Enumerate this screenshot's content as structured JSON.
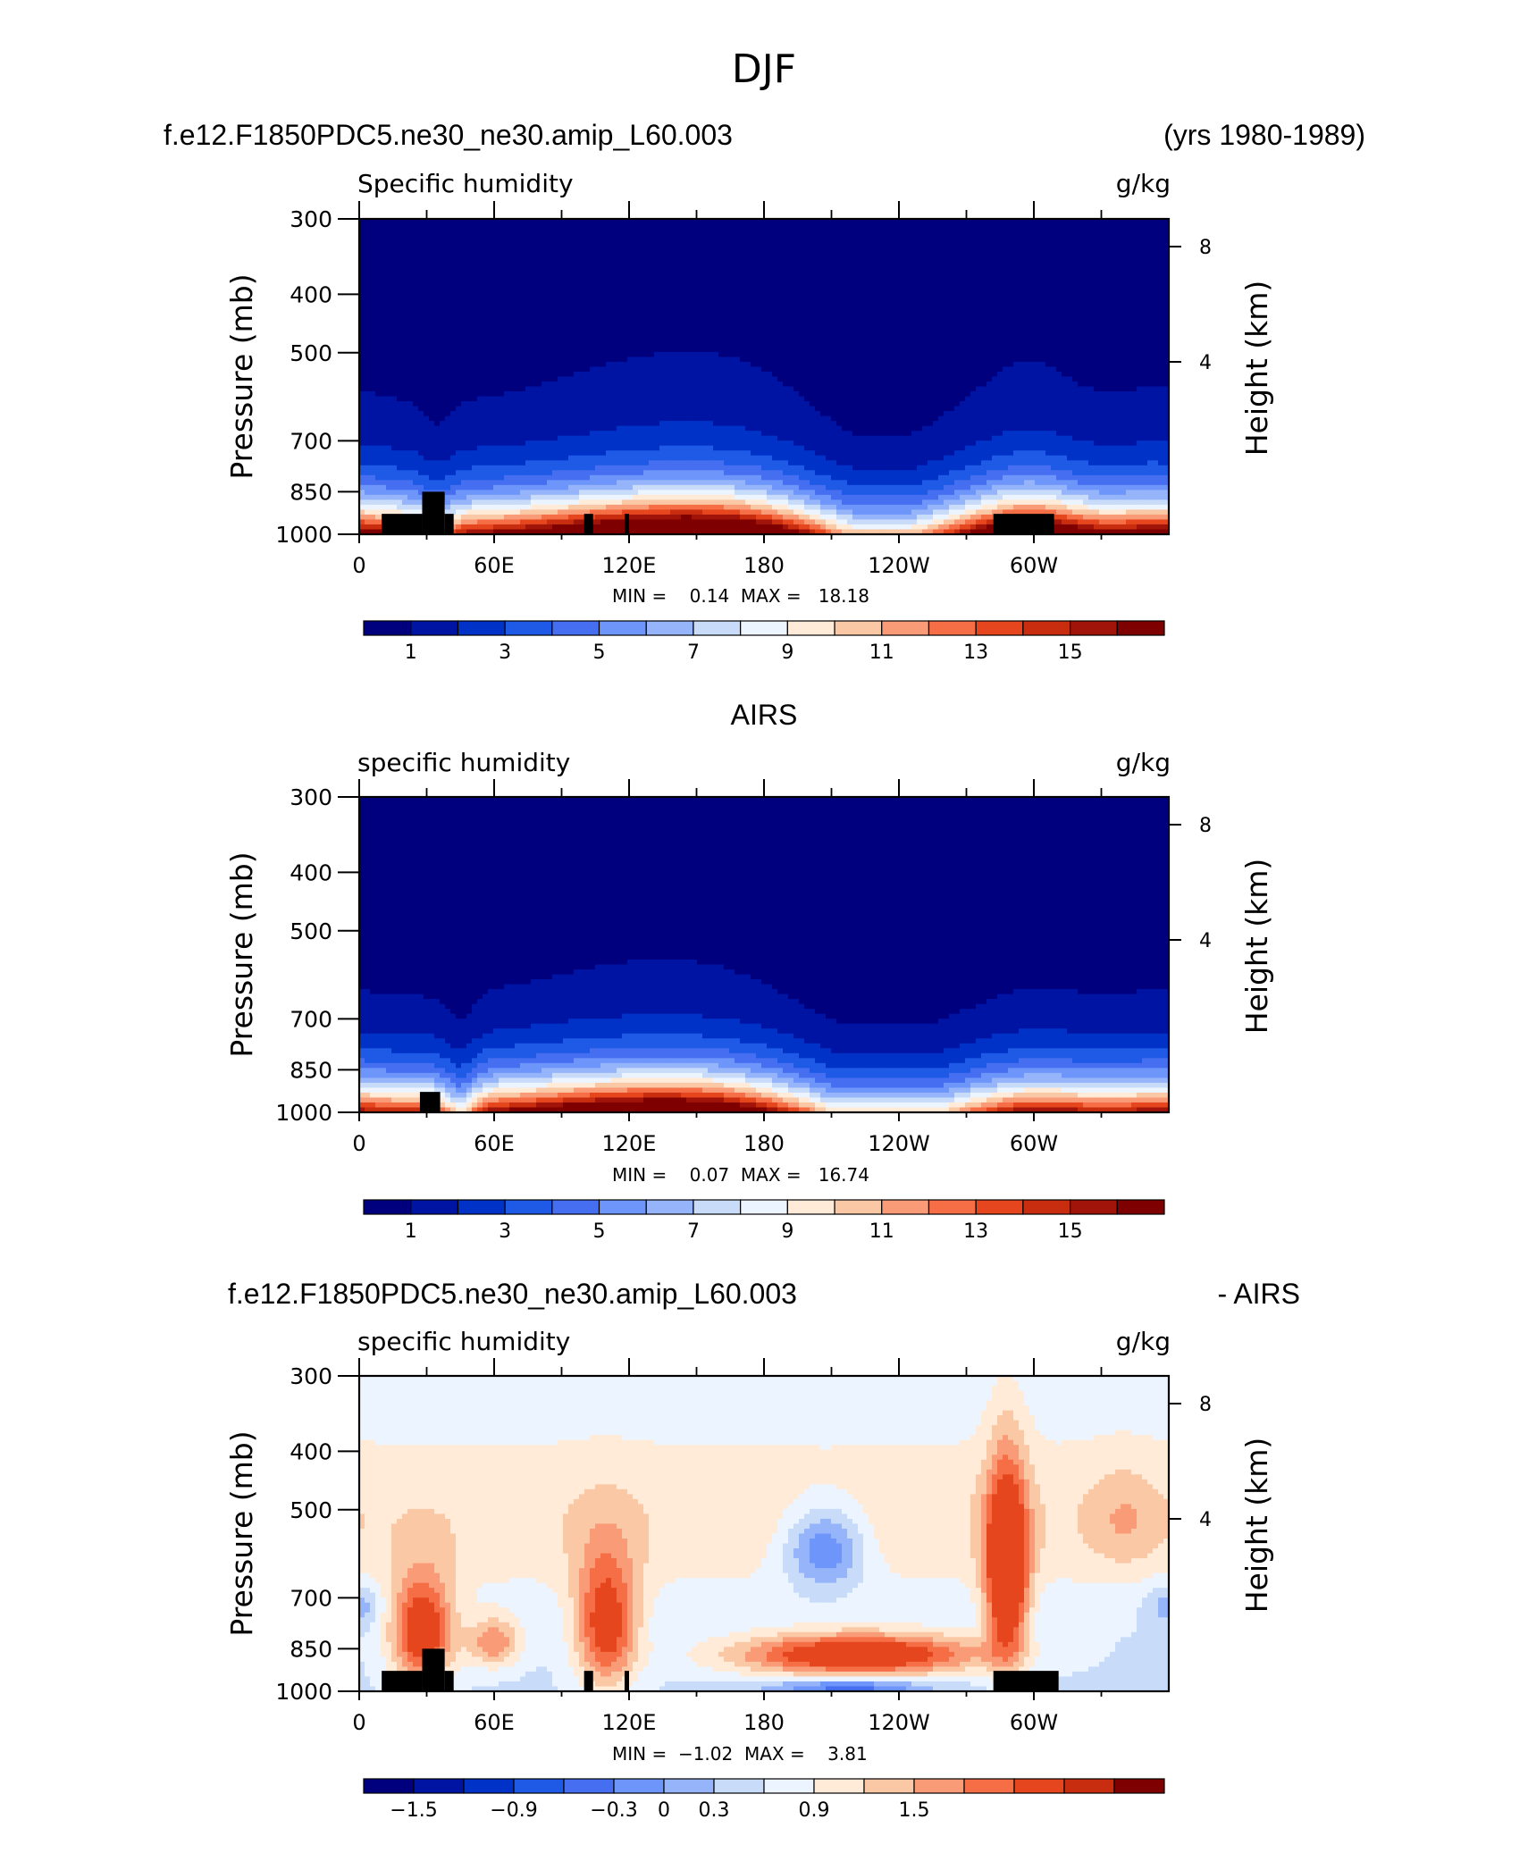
{
  "figure_title": "DJF",
  "panels": [
    {
      "header_left": "f.e12.F1850PDC5.ne30_ne30.amip_L60.003",
      "header_right": "(yrs 1980-1989)",
      "header_center": "",
      "subtitle": "Specific humidity",
      "units": "g/kg",
      "minmax": "MIN =    0.14  MAX =   18.18",
      "colorbar_labels": [
        "1",
        "3",
        "5",
        "7",
        "9",
        "11",
        "13",
        "15"
      ]
    },
    {
      "header_left": "",
      "header_right": "",
      "header_center": "AIRS",
      "subtitle": "specific humidity",
      "units": "g/kg",
      "minmax": "MIN =    0.07  MAX =   16.74",
      "colorbar_labels": [
        "1",
        "3",
        "5",
        "7",
        "9",
        "11",
        "13",
        "15"
      ]
    },
    {
      "header_left": "f.e12.F1850PDC5.ne30_ne30.amip_L60.003",
      "header_right": "- AIRS",
      "header_center": "",
      "subtitle": "specific humidity",
      "units": "g/kg",
      "minmax": "MIN =  −1.02  MAX =    3.81",
      "colorbar_labels": [
        "−1.5",
        "−0.9",
        "−0.3",
        "0",
        "0.3",
        "0.9",
        "1.5"
      ]
    }
  ],
  "colors": {
    "humidity_scale": [
      "#00007f",
      "#0014a4",
      "#0032c8",
      "#1e5ae6",
      "#466ef0",
      "#6e96fa",
      "#96b4fa",
      "#c8dcfa",
      "#ebf4ff",
      "#ffebd7",
      "#fac8a5",
      "#fa9b78",
      "#f56e46",
      "#e6461e",
      "#c82d0f",
      "#a0140a",
      "#7f0000"
    ],
    "difference_scale": [
      "#00007f",
      "#0014a4",
      "#0032c8",
      "#1e5ae6",
      "#466ef0",
      "#6e96fa",
      "#96b4fa",
      "#c8dcfa",
      "#ebf4ff",
      "#ffebd7",
      "#fac8a5",
      "#fa9b78",
      "#f56e46",
      "#e6461e",
      "#c82d0f",
      "#7f0000"
    ]
  },
  "chart_data": [
    {
      "type": "heatmap",
      "title": "Specific humidity",
      "units": "g/kg",
      "xlabel": "",
      "ylabel": "Pressure (mb)",
      "ylabel_right": "Height (km)",
      "x_ticks": [
        "0",
        "60E",
        "120E",
        "180",
        "120W",
        "60W"
      ],
      "y_ticks": [
        "300",
        "400",
        "500",
        "700",
        "850",
        "1000"
      ],
      "y_right_ticks": [
        "8",
        "4"
      ],
      "xlim": [
        0,
        360
      ],
      "ylim": [
        1000,
        300
      ],
      "y_scale": "log",
      "levels": [
        1,
        2,
        3,
        4,
        5,
        6,
        7,
        8,
        9,
        10,
        11,
        12,
        13,
        14,
        15,
        16
      ],
      "min": 0.14,
      "max": 18.18,
      "topography_pressure": [
        {
          "lon_range": [
            10,
            28
          ],
          "p": 925
        },
        {
          "lon_range": [
            28,
            38
          ],
          "p": 850
        },
        {
          "lon_range": [
            38,
            42
          ],
          "p": 925
        },
        {
          "lon_range": [
            100,
            104
          ],
          "p": 925
        },
        {
          "lon_range": [
            118,
            120
          ],
          "p": 925
        },
        {
          "lon_range": [
            282,
            309
          ],
          "p": 925
        }
      ]
    },
    {
      "type": "heatmap",
      "title": "specific humidity",
      "units": "g/kg",
      "xlabel": "",
      "ylabel": "Pressure (mb)",
      "ylabel_right": "Height (km)",
      "x_ticks": [
        "0",
        "60E",
        "120E",
        "180",
        "120W",
        "60W"
      ],
      "y_ticks": [
        "300",
        "400",
        "500",
        "700",
        "850",
        "1000"
      ],
      "y_right_ticks": [
        "8",
        "4"
      ],
      "xlim": [
        0,
        360
      ],
      "ylim": [
        1000,
        300
      ],
      "y_scale": "log",
      "levels": [
        1,
        2,
        3,
        4,
        5,
        6,
        7,
        8,
        9,
        10,
        11,
        12,
        13,
        14,
        15,
        16
      ],
      "min": 0.07,
      "max": 16.74,
      "topography_pressure": [
        {
          "lon_range": [
            27,
            36
          ],
          "p": 925
        }
      ]
    },
    {
      "type": "heatmap",
      "title": "specific humidity",
      "units": "g/kg",
      "xlabel": "",
      "ylabel": "Pressure (mb)",
      "ylabel_right": "Height (km)",
      "x_ticks": [
        "0",
        "60E",
        "120E",
        "180",
        "120W",
        "60W"
      ],
      "y_ticks": [
        "300",
        "400",
        "500",
        "700",
        "850",
        "1000"
      ],
      "y_right_ticks": [
        "8",
        "4"
      ],
      "xlim": [
        0,
        360
      ],
      "ylim": [
        1000,
        300
      ],
      "y_scale": "log",
      "levels": [
        -1.8,
        -1.5,
        -1.2,
        -0.9,
        -0.6,
        -0.3,
        0,
        0.3,
        0.6,
        0.9,
        1.2,
        1.5,
        1.8
      ],
      "min": -1.02,
      "max": 3.81,
      "topography_pressure": [
        {
          "lon_range": [
            10,
            28
          ],
          "p": 925
        },
        {
          "lon_range": [
            28,
            38
          ],
          "p": 850
        },
        {
          "lon_range": [
            38,
            42
          ],
          "p": 925
        },
        {
          "lon_range": [
            100,
            104
          ],
          "p": 925
        },
        {
          "lon_range": [
            118,
            120
          ],
          "p": 925
        },
        {
          "lon_range": [
            282,
            311
          ],
          "p": 925
        }
      ]
    }
  ]
}
